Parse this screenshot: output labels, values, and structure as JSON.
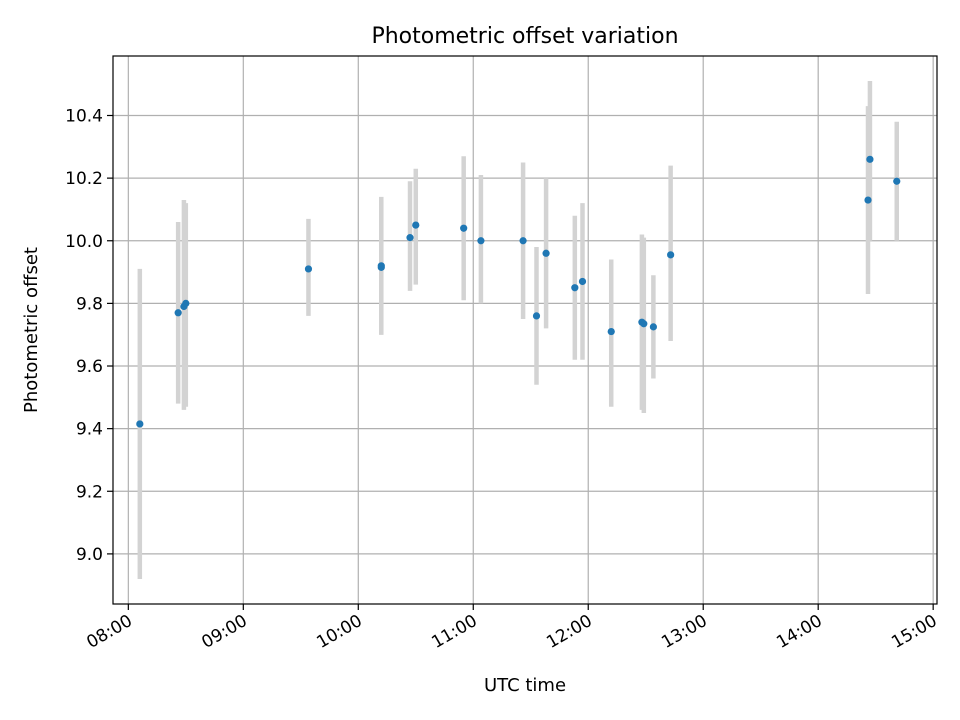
{
  "chart_data": {
    "type": "scatter",
    "title": "Photometric offset variation",
    "xlabel": "UTC time",
    "ylabel": "Photometric offset",
    "x_ticks": [
      "08:00",
      "09:00",
      "10:00",
      "11:00",
      "12:00",
      "13:00",
      "14:00",
      "15:00"
    ],
    "y_ticks": [
      "9.0",
      "9.2",
      "9.4",
      "9.6",
      "9.8",
      "10.0",
      "10.2",
      "10.4"
    ],
    "xlim": [
      "07:52",
      "15:02"
    ],
    "ylim": [
      8.84,
      10.59
    ],
    "grid": true,
    "colors": {
      "point": "#1f77b4",
      "errorbar": "#d3d3d3"
    },
    "series": [
      {
        "points": [
          {
            "x": "08:06",
            "y": 9.415,
            "lo": 8.92,
            "hi": 9.91
          },
          {
            "x": "08:26",
            "y": 9.77,
            "lo": 9.48,
            "hi": 10.06
          },
          {
            "x": "08:29",
            "y": 9.79,
            "lo": 9.46,
            "hi": 10.13
          },
          {
            "x": "08:30",
            "y": 9.8,
            "lo": 9.47,
            "hi": 10.12
          },
          {
            "x": "09:34",
            "y": 9.91,
            "lo": 9.76,
            "hi": 10.07
          },
          {
            "x": "10:12",
            "y": 9.92,
            "lo": 9.7,
            "hi": 10.14
          },
          {
            "x": "10:12",
            "y": 9.915,
            "lo": 9.7,
            "hi": 10.13
          },
          {
            "x": "10:27",
            "y": 10.01,
            "lo": 9.84,
            "hi": 10.19
          },
          {
            "x": "10:30",
            "y": 10.05,
            "lo": 9.86,
            "hi": 10.23
          },
          {
            "x": "10:55",
            "y": 10.04,
            "lo": 9.81,
            "hi": 10.27
          },
          {
            "x": "11:04",
            "y": 10.0,
            "lo": 9.8,
            "hi": 10.21
          },
          {
            "x": "11:26",
            "y": 10.0,
            "lo": 9.75,
            "hi": 10.25
          },
          {
            "x": "11:33",
            "y": 9.76,
            "lo": 9.54,
            "hi": 9.98
          },
          {
            "x": "11:38",
            "y": 9.96,
            "lo": 9.72,
            "hi": 10.2
          },
          {
            "x": "11:53",
            "y": 9.85,
            "lo": 9.62,
            "hi": 10.08
          },
          {
            "x": "11:57",
            "y": 9.87,
            "lo": 9.62,
            "hi": 10.12
          },
          {
            "x": "12:12",
            "y": 9.71,
            "lo": 9.47,
            "hi": 9.94
          },
          {
            "x": "12:28",
            "y": 9.74,
            "lo": 9.46,
            "hi": 10.02
          },
          {
            "x": "12:29",
            "y": 9.735,
            "lo": 9.45,
            "hi": 10.01
          },
          {
            "x": "12:34",
            "y": 9.725,
            "lo": 9.56,
            "hi": 9.89
          },
          {
            "x": "12:43",
            "y": 9.955,
            "lo": 9.68,
            "hi": 10.24
          },
          {
            "x": "14:26",
            "y": 10.13,
            "lo": 9.83,
            "hi": 10.43
          },
          {
            "x": "14:27",
            "y": 10.26,
            "lo": 10.0,
            "hi": 10.51
          },
          {
            "x": "14:41",
            "y": 10.19,
            "lo": 10.0,
            "hi": 10.38
          }
        ]
      }
    ]
  }
}
